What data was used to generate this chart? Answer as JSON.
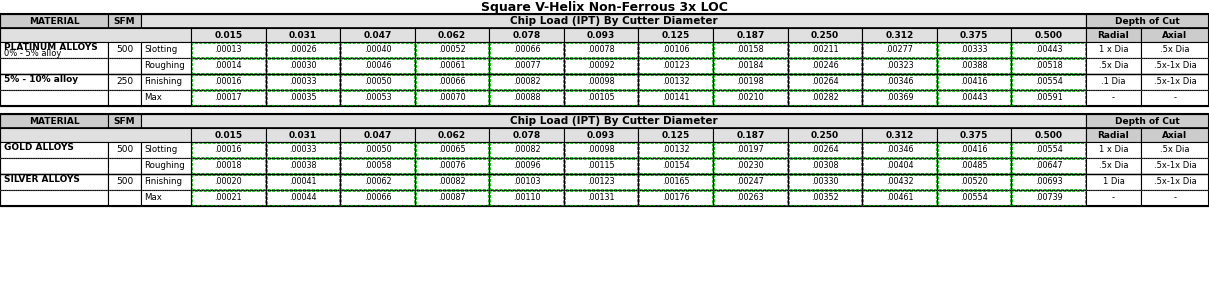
{
  "title": "Square V-Helix Non-Ferrous 3x LOC",
  "bg_color": "#FFFFFF",
  "header_bg": "#CCCCCC",
  "subheader_bg": "#E0E0E0",
  "cell_bg": "#FFFFFF",
  "dashed_color": "#00AA00",
  "black": "#000000",
  "chip_labels": [
    "0.015",
    "0.031",
    "0.047",
    "0.062",
    "0.078",
    "0.093",
    "0.125",
    "0.187",
    "0.250",
    "0.312",
    "0.375",
    "0.500"
  ],
  "table1": {
    "rows": [
      {
        "material": "PLATINUM ALLOYS",
        "material2": "0% - 5% alloy",
        "sfm": "500",
        "type": "Slotting",
        "vals": [
          ".00013",
          ".00026",
          ".00040",
          ".00052",
          ".00066",
          ".00078",
          ".00106",
          ".00158",
          ".00211",
          ".00277",
          ".00333",
          ".00443"
        ],
        "radial": "1 x Dia",
        "axial": ".5x Dia"
      },
      {
        "material": "",
        "material2": "",
        "sfm": "",
        "type": "Roughing",
        "vals": [
          ".00014",
          ".00030",
          ".00046",
          ".00061",
          ".00077",
          ".00092",
          ".00123",
          ".00184",
          ".00246",
          ".00323",
          ".00388",
          ".00518"
        ],
        "radial": ".5x Dia",
        "axial": ".5x-1x Dia"
      },
      {
        "material": "5% - 10% alloy",
        "material2": "",
        "sfm": "250",
        "type": "Finishing",
        "vals": [
          ".00016",
          ".00033",
          ".00050",
          ".00066",
          ".00082",
          ".00098",
          ".00132",
          ".00198",
          ".00264",
          ".00346",
          ".00416",
          ".00554"
        ],
        "radial": ".1 Dia",
        "axial": ".5x-1x Dia"
      },
      {
        "material": "",
        "material2": "",
        "sfm": "",
        "type": "Max",
        "vals": [
          ".00017",
          ".00035",
          ".00053",
          ".00070",
          ".00088",
          ".00105",
          ".00141",
          ".00210",
          ".00282",
          ".00369",
          ".00443",
          ".00591"
        ],
        "radial": "-",
        "axial": "-"
      }
    ]
  },
  "table2": {
    "rows": [
      {
        "material": "GOLD ALLOYS",
        "material2": "",
        "sfm": "500",
        "type": "Slotting",
        "vals": [
          ".00016",
          ".00033",
          ".00050",
          ".00065",
          ".00082",
          ".00098",
          ".00132",
          ".00197",
          ".00264",
          ".00346",
          ".00416",
          ".00554"
        ],
        "radial": "1 x Dia",
        "axial": ".5x Dia"
      },
      {
        "material": "",
        "material2": "",
        "sfm": "",
        "type": "Roughing",
        "vals": [
          ".00018",
          ".00038",
          ".00058",
          ".00076",
          ".00096",
          ".00115",
          ".00154",
          ".00230",
          ".00308",
          ".00404",
          ".00485",
          ".00647"
        ],
        "radial": ".5x Dia",
        "axial": ".5x-1x Dia"
      },
      {
        "material": "SILVER ALLOYS",
        "material2": "",
        "sfm": "500",
        "type": "Finishing",
        "vals": [
          ".00020",
          ".00041",
          ".00062",
          ".00082",
          ".00103",
          ".00123",
          ".00165",
          ".00247",
          ".00330",
          ".00432",
          ".00520",
          ".00693"
        ],
        "radial": "1 Dia",
        "axial": ".5x-1x Dia"
      },
      {
        "material": "",
        "material2": "",
        "sfm": "",
        "type": "Max",
        "vals": [
          ".00021",
          ".00044",
          ".00066",
          ".00087",
          ".00110",
          ".00131",
          ".00176",
          ".00263",
          ".00352",
          ".00461",
          ".00554",
          ".00739"
        ],
        "radial": "-",
        "axial": "-"
      }
    ]
  }
}
